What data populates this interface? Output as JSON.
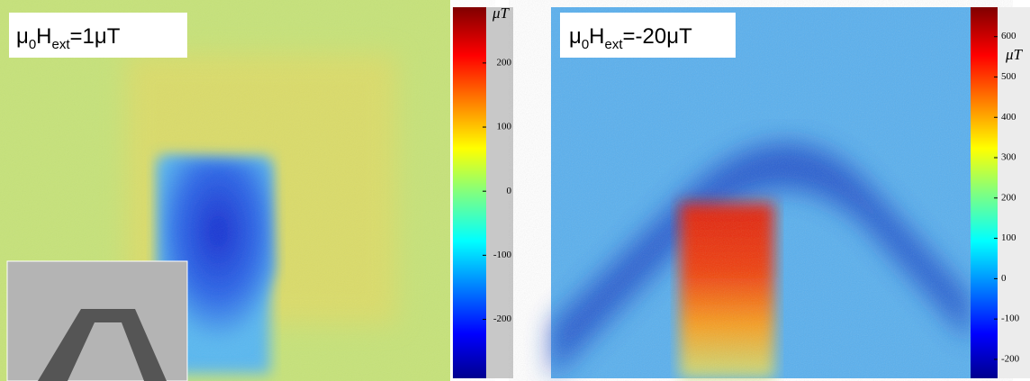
{
  "panels": [
    {
      "label": [
        "μ",
        "0",
        "H",
        "ext",
        "=1μT"
      ],
      "unit": "μT",
      "colorbar": {
        "lim": [
          -292,
          287
        ],
        "ticks": [
          200,
          100,
          0,
          -100,
          -200
        ]
      }
    },
    {
      "label": [
        "μ",
        "0",
        "H",
        "ext",
        "=-20μT"
      ],
      "unit": "μT",
      "colorbar": {
        "lim": [
          -247,
          673
        ],
        "ticks": [
          600,
          500,
          400,
          300,
          200,
          100,
          0,
          -100,
          -200
        ]
      }
    }
  ]
}
